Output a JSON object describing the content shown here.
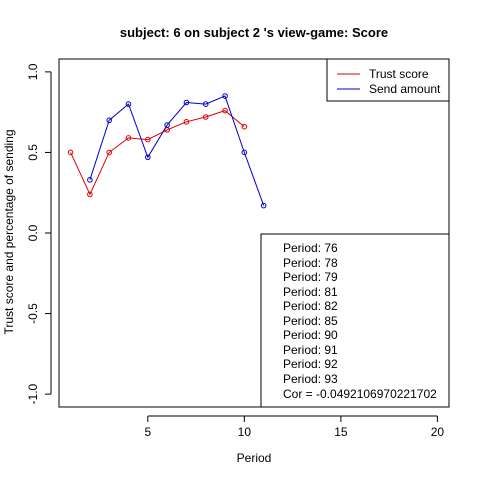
{
  "chart_data": {
    "type": "line",
    "title": "subject:  6  on subject  2 's view-game:  Score",
    "xlabel": "Period",
    "ylabel": "Trust score and percentage of sending",
    "xlim": [
      0.4,
      20.6
    ],
    "ylim": [
      -1.08,
      1.08
    ],
    "x_ticks": [
      5,
      10,
      15,
      20
    ],
    "x_tick_labels": [
      "5",
      "10",
      "15",
      "20"
    ],
    "y_ticks": [
      -1.0,
      -0.5,
      0.0,
      0.5,
      1.0
    ],
    "y_tick_labels": [
      "-1.0",
      "-0.5",
      "0.0",
      "0.5",
      "1.0"
    ],
    "grid": false,
    "legend_position": "top-right",
    "series": [
      {
        "name": "Trust score",
        "color": "#dd0000",
        "x": [
          1,
          2,
          3,
          4,
          5,
          6,
          7,
          8,
          9,
          10
        ],
        "values": [
          0.5,
          0.24,
          0.5,
          0.59,
          0.58,
          0.64,
          0.69,
          0.72,
          0.76,
          0.66
        ]
      },
      {
        "name": "Send amount",
        "color": "#0000cc",
        "x": [
          2,
          3,
          4,
          5,
          6,
          7,
          8,
          9,
          10,
          11
        ],
        "values": [
          0.33,
          0.7,
          0.8,
          0.47,
          0.67,
          0.81,
          0.8,
          0.85,
          0.5,
          0.17
        ]
      }
    ],
    "annotation_lines": [
      "Period:  76",
      "Period:  78",
      "Period:  79",
      "Period:  81",
      "Period:  82",
      "Period:  85",
      "Period:  90",
      "Period:  91",
      "Period:  92",
      "Period:  93",
      "Cor =  -0.0492106970221702"
    ]
  }
}
